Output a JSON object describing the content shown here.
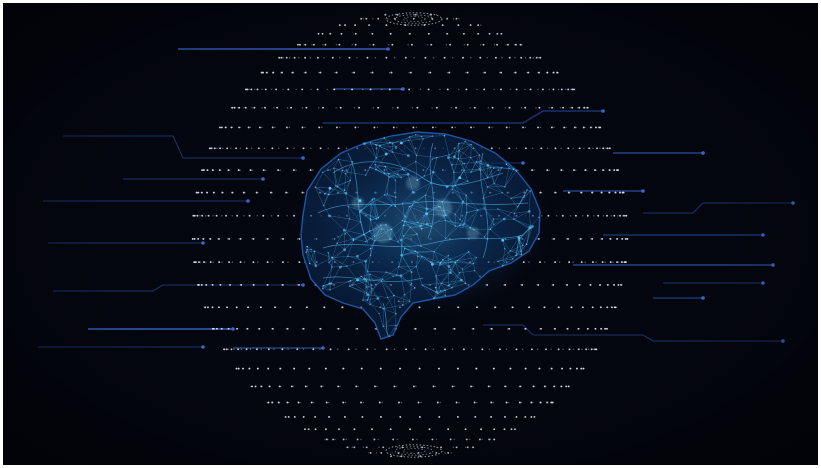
{
  "image": {
    "subject": "wireframe-brain-in-dotted-sphere",
    "colors": {
      "background": "#04060f",
      "circuit_line": "#1e3a7a",
      "circuit_glow": "#3b6fd8",
      "dot": "#e6ecff",
      "brain_core": "#52c8ff",
      "brain_edge": "#1b5fb0"
    }
  }
}
